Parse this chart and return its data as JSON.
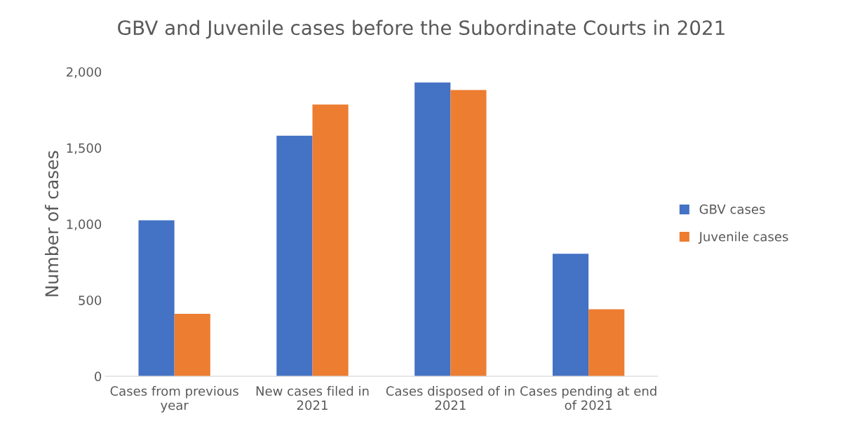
{
  "chart_data": {
    "type": "bar",
    "title": "GBV and Juvenile cases before the Subordinate Courts in 2021",
    "ylabel": "Number of cases",
    "categories": [
      "Cases from previous year",
      "New cases filed in 2021",
      "Cases disposed of in 2021",
      "Cases pending at end of 2021"
    ],
    "series": [
      {
        "name": "GBV cases",
        "color": "#4472c4",
        "values": [
          1025,
          1580,
          1930,
          805
        ]
      },
      {
        "name": "Juvenile cases",
        "color": "#ed7d31",
        "values": [
          410,
          1785,
          1880,
          440
        ]
      }
    ],
    "ylim": [
      0,
      2000
    ],
    "yticks": [
      {
        "value": 0,
        "label": "0"
      },
      {
        "value": 500,
        "label": "500"
      },
      {
        "value": 1000,
        "label": "1,000"
      },
      {
        "value": 1500,
        "label": "1,500"
      },
      {
        "value": 2000,
        "label": "2,000"
      }
    ],
    "grid": false,
    "legend": "right"
  }
}
